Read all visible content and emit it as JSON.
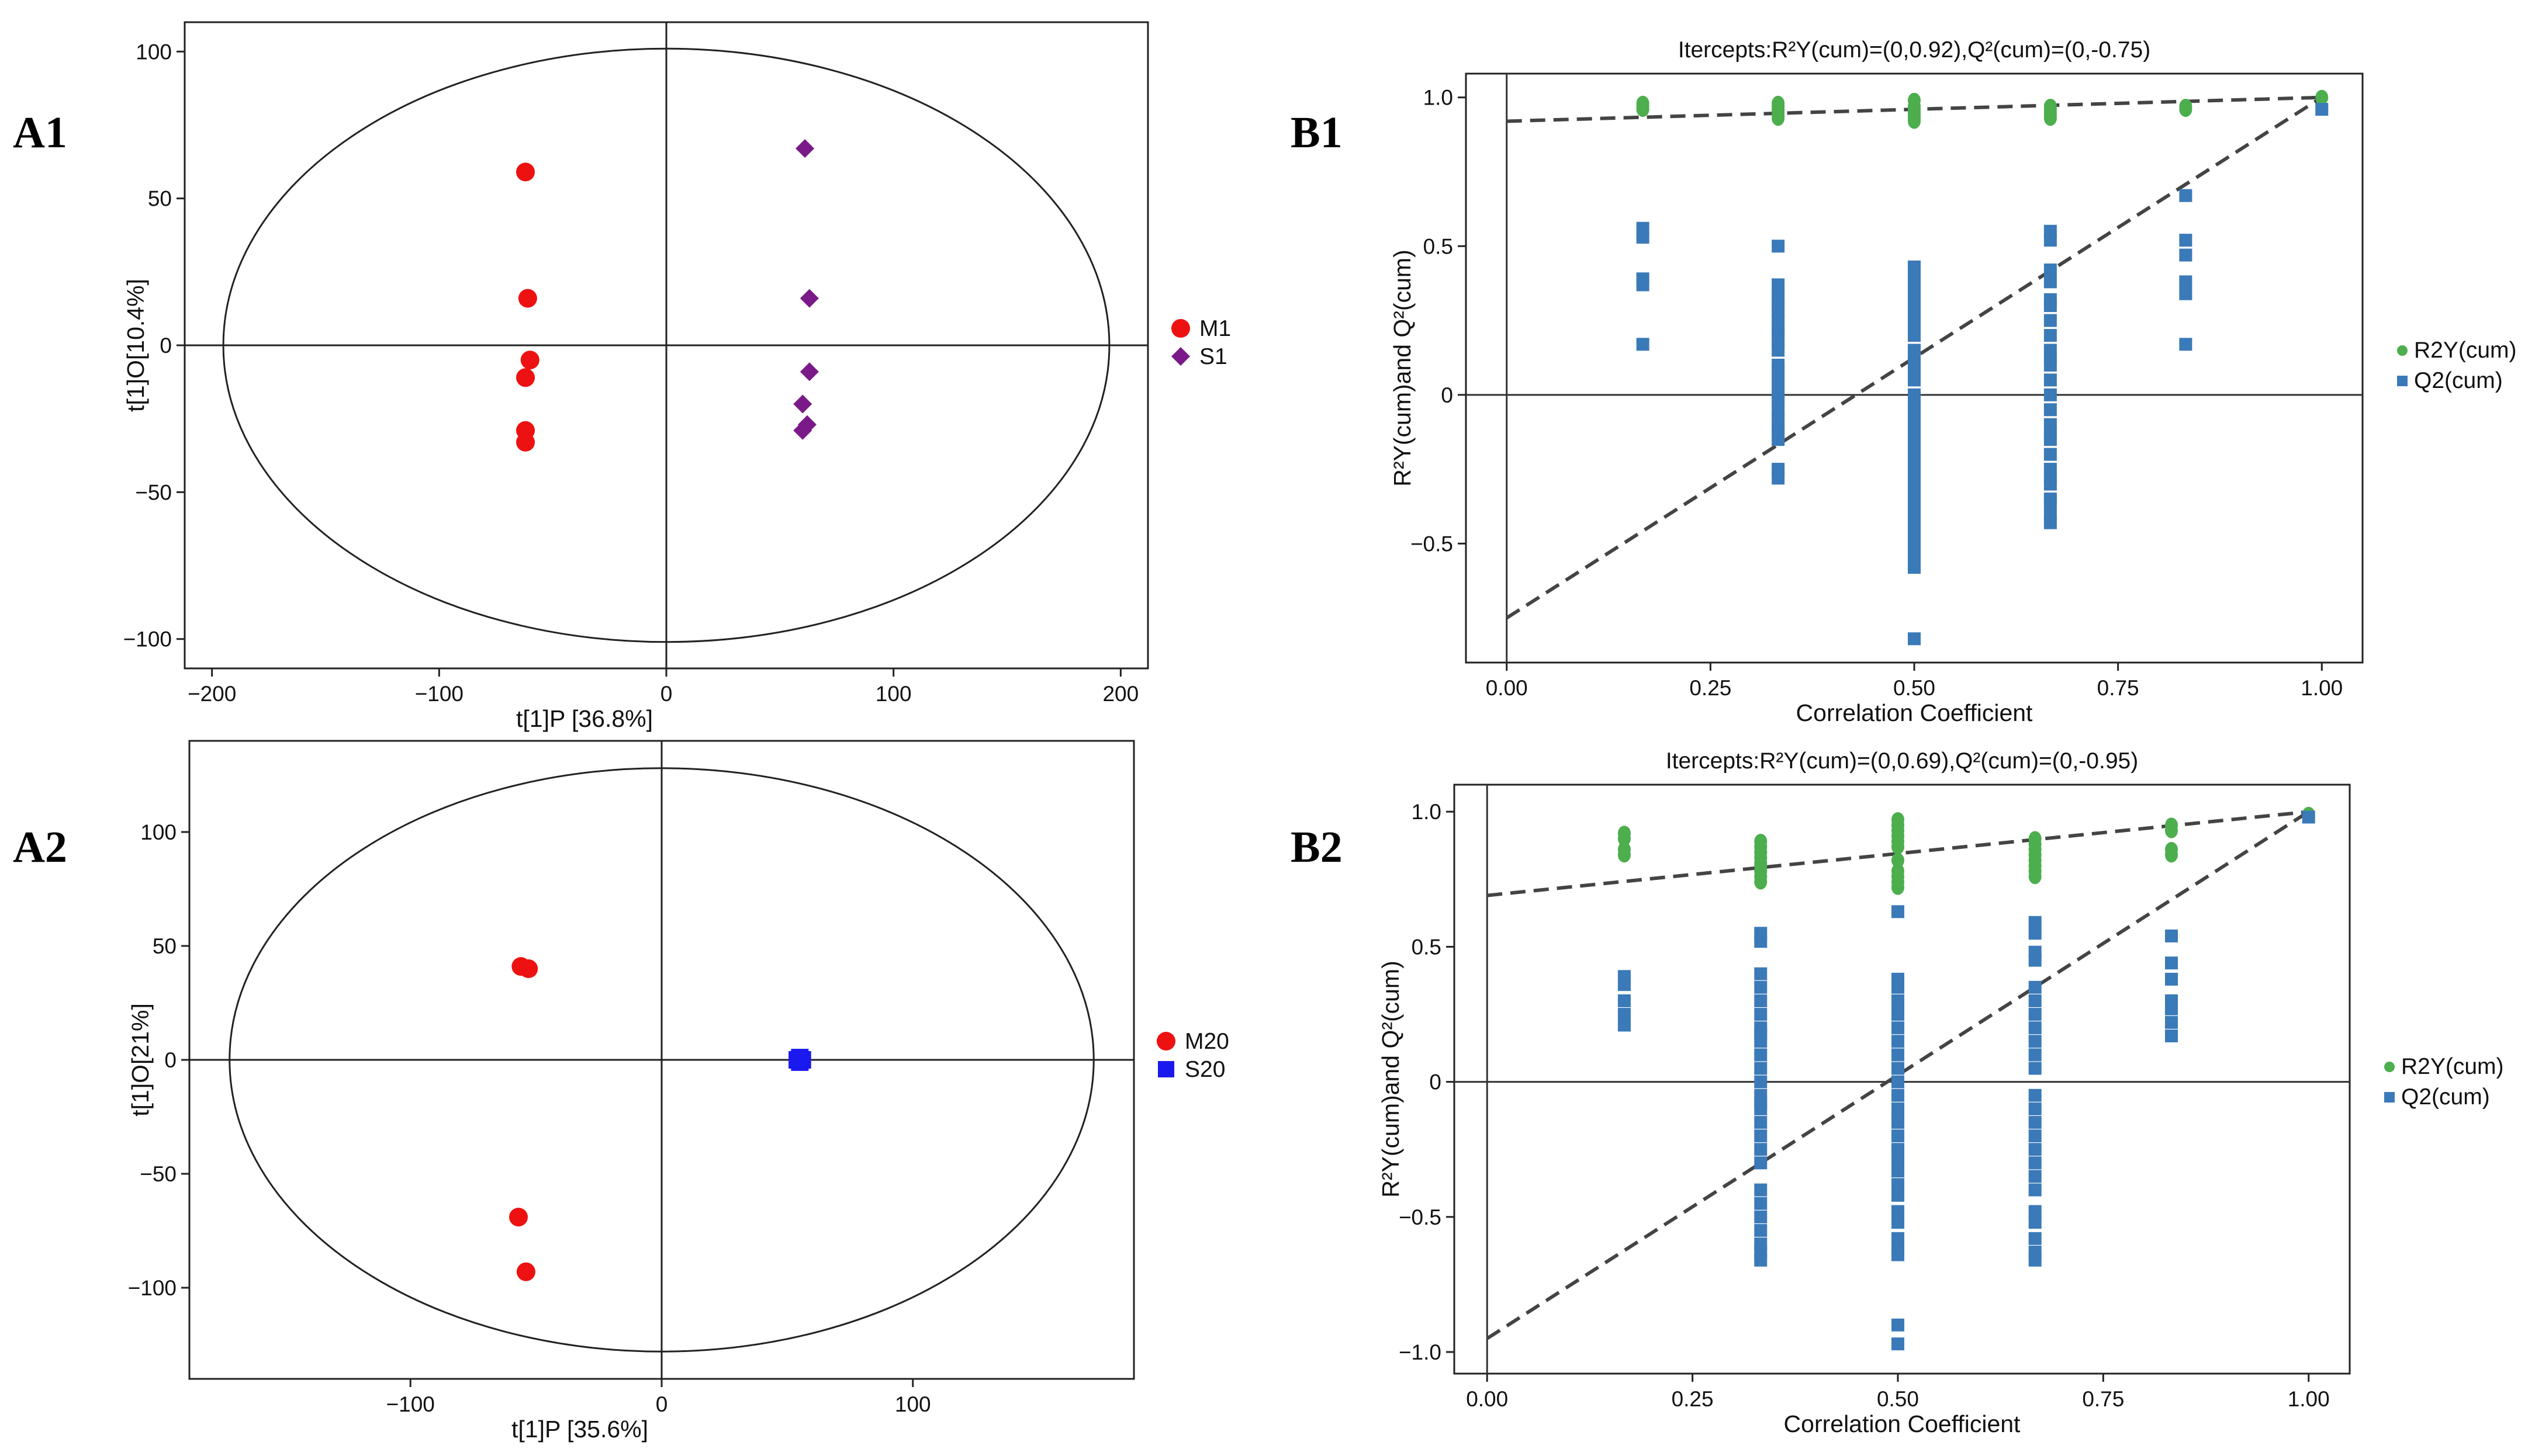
{
  "panel_labels": {
    "a1": "A1",
    "a2": "A2",
    "b1": "B1",
    "b2": "B2"
  },
  "colors": {
    "red": "#ee1111",
    "purple": "#7a1a88",
    "blue": "#1a1aee",
    "green": "#4cae4c",
    "steel": "#3a7ab8",
    "dash": "#444444"
  },
  "chart_data": [
    {
      "id": "A1",
      "type": "scatter",
      "title": "",
      "xlabel": "t[1]P [36.8%]",
      "ylabel": "t[1]O[10.4%]",
      "xlim": [
        -212,
        212
      ],
      "ylim": [
        -110,
        110
      ],
      "xticks": [
        -200,
        -100,
        0,
        100,
        200
      ],
      "yticks": [
        -100,
        -50,
        0,
        50,
        100
      ],
      "xtick_labels": [
        "−200",
        "−100",
        "0",
        "100",
        "200"
      ],
      "ytick_labels": [
        "−100",
        "−50",
        "0",
        "50",
        "100"
      ],
      "ellipse": {
        "rx": 195,
        "ry": 101
      },
      "series": [
        {
          "name": "M1",
          "marker": "circle",
          "color": "#ee1111",
          "points": [
            [
              -62,
              59
            ],
            [
              -61,
              16
            ],
            [
              -60,
              -5
            ],
            [
              -62,
              -11
            ],
            [
              -62,
              -29
            ],
            [
              -62,
              -33
            ]
          ]
        },
        {
          "name": "S1",
          "marker": "diamond",
          "color": "#7a1a88",
          "points": [
            [
              61,
              67
            ],
            [
              63,
              16
            ],
            [
              63,
              -9
            ],
            [
              60,
              -20
            ],
            [
              62,
              -27
            ],
            [
              60,
              -29
            ]
          ]
        }
      ]
    },
    {
      "id": "A2",
      "type": "scatter",
      "title": "",
      "xlabel": "t[1]P [35.6%]",
      "ylabel": "t[1]O[21%]",
      "xlim": [
        -188,
        188
      ],
      "ylim": [
        -140,
        140
      ],
      "xticks": [
        -100,
        0,
        100
      ],
      "yticks": [
        -100,
        -50,
        0,
        50,
        100
      ],
      "xtick_labels": [
        "−100",
        "0",
        "100"
      ],
      "ytick_labels": [
        "−100",
        "−50",
        "0",
        "50",
        "100"
      ],
      "ellipse": {
        "rx": 172,
        "ry": 128
      },
      "series": [
        {
          "name": "M20",
          "marker": "circle",
          "color": "#ee1111",
          "points": [
            [
              -56,
              41
            ],
            [
              -53,
              40
            ],
            [
              -57,
              -69
            ],
            [
              -54,
              -93
            ]
          ]
        },
        {
          "name": "S20",
          "marker": "square",
          "color": "#1a1aee",
          "points": [
            [
              54,
              0
            ],
            [
              55,
              1
            ],
            [
              55,
              -1
            ],
            [
              56,
              0
            ]
          ]
        }
      ]
    },
    {
      "id": "B1",
      "type": "scatter",
      "title": "Itercepts:R²Y(cum)=(0,0.92),Q²(cum)=(0,-0.75)",
      "xlabel": "Correlation Coefficient",
      "ylabel": "R²Y(cum)and Q²(cum)",
      "xlim": [
        -0.05,
        1.05
      ],
      "ylim": [
        -0.9,
        1.08
      ],
      "xticks": [
        0,
        0.25,
        0.5,
        0.75,
        1
      ],
      "yticks": [
        -0.5,
        0,
        0.5,
        1
      ],
      "xtick_labels": [
        "0.00",
        "0.25",
        "0.50",
        "0.75",
        "1.00"
      ],
      "ytick_labels": [
        "−0.5",
        "0",
        "0.5",
        "1.0"
      ],
      "intercepts": {
        "r2y": 0.92,
        "q2": -0.75
      },
      "series": [
        {
          "name": "R2Y(cum)",
          "marker": "circle",
          "color": "#4cae4c",
          "x": [
            0.167,
            0.167,
            0.167,
            0.333,
            0.333,
            0.333,
            0.333,
            0.333,
            0.333,
            0.5,
            0.5,
            0.5,
            0.5,
            0.5,
            0.5,
            0.5,
            0.667,
            0.667,
            0.667,
            0.667,
            0.667,
            0.833,
            0.833,
            1.0
          ],
          "y": [
            0.96,
            0.97,
            0.98,
            0.93,
            0.94,
            0.95,
            0.96,
            0.97,
            0.98,
            0.92,
            0.93,
            0.94,
            0.95,
            0.96,
            0.97,
            0.99,
            0.93,
            0.94,
            0.95,
            0.96,
            0.97,
            0.96,
            0.97,
            1.0
          ]
        },
        {
          "name": "Q2(cum)",
          "marker": "square",
          "color": "#3a7ab8",
          "x": [
            0.167,
            0.167,
            0.167,
            0.167,
            0.167,
            0.333,
            0.333,
            0.333,
            0.333,
            0.333,
            0.333,
            0.333,
            0.333,
            0.333,
            0.333,
            0.333,
            0.333,
            0.333,
            0.333,
            0.333,
            0.333,
            0.333,
            0.333,
            0.333,
            0.333,
            0.333,
            0.333,
            0.333,
            0.5,
            0.5,
            0.5,
            0.5,
            0.5,
            0.5,
            0.5,
            0.5,
            0.5,
            0.5,
            0.5,
            0.5,
            0.5,
            0.5,
            0.5,
            0.5,
            0.5,
            0.5,
            0.5,
            0.5,
            0.5,
            0.5,
            0.5,
            0.5,
            0.5,
            0.5,
            0.5,
            0.5,
            0.5,
            0.5,
            0.5,
            0.5,
            0.5,
            0.5,
            0.5,
            0.5,
            0.5,
            0.5,
            0.5,
            0.667,
            0.667,
            0.667,
            0.667,
            0.667,
            0.667,
            0.667,
            0.667,
            0.667,
            0.667,
            0.667,
            0.667,
            0.667,
            0.667,
            0.667,
            0.667,
            0.667,
            0.667,
            0.667,
            0.667,
            0.667,
            0.667,
            0.667,
            0.667,
            0.667,
            0.833,
            0.833,
            0.833,
            0.833,
            0.833,
            0.833,
            1.0
          ],
          "y": [
            0.56,
            0.53,
            0.39,
            0.37,
            0.17,
            0.5,
            0.37,
            0.33,
            0.3,
            0.25,
            0.2,
            0.15,
            0.1,
            0.05,
            0.0,
            -0.02,
            -0.05,
            -0.08,
            -0.12,
            -0.15,
            0.28,
            0.22,
            0.18,
            0.08,
            0.03,
            -0.1,
            -0.25,
            -0.28,
            0.43,
            0.4,
            0.36,
            0.3,
            0.25,
            0.2,
            0.15,
            0.1,
            0.05,
            0.0,
            -0.05,
            -0.1,
            -0.15,
            -0.2,
            -0.25,
            -0.3,
            -0.35,
            0.35,
            0.12,
            -0.02,
            -0.28,
            -0.32,
            -0.42,
            -0.45,
            -0.48,
            -0.5,
            -0.52,
            -0.58,
            -0.82,
            0.27,
            0.22,
            0.07,
            -0.08,
            -0.12,
            -0.18,
            -0.22,
            -0.38,
            -0.55,
            0.33,
            0.55,
            0.52,
            0.42,
            0.38,
            0.3,
            0.25,
            0.2,
            0.15,
            0.1,
            0.05,
            0.0,
            -0.05,
            -0.1,
            -0.15,
            -0.2,
            -0.25,
            -0.3,
            -0.35,
            -0.4,
            -0.43,
            0.32,
            0.12,
            -0.13,
            -0.28,
            -0.36,
            0.67,
            0.52,
            0.47,
            0.38,
            0.34,
            0.17,
            0.96
          ]
        }
      ]
    },
    {
      "id": "B2",
      "type": "scatter",
      "title": "Itercepts:R²Y(cum)=(0,0.69),Q²(cum)=(0,-0.95)",
      "xlabel": "Correlation Coefficient",
      "ylabel": "R²Y(cum)and Q²(cum)",
      "xlim": [
        -0.04,
        1.05
      ],
      "ylim": [
        -1.08,
        1.1
      ],
      "xticks": [
        0,
        0.25,
        0.5,
        0.75,
        1
      ],
      "yticks": [
        -1,
        -0.5,
        0,
        0.5,
        1
      ],
      "xtick_labels": [
        "0.00",
        "0.25",
        "0.50",
        "0.75",
        "1.00"
      ],
      "ytick_labels": [
        "−1.0",
        "−0.5",
        "0",
        "0.5",
        "1.0"
      ],
      "intercepts": {
        "r2y": 0.69,
        "q2": -0.95
      },
      "series": [
        {
          "name": "R2Y(cum)",
          "marker": "circle",
          "color": "#4cae4c",
          "x": [
            0.167,
            0.167,
            0.167,
            0.167,
            0.333,
            0.333,
            0.333,
            0.333,
            0.333,
            0.333,
            0.333,
            0.333,
            0.333,
            0.5,
            0.5,
            0.5,
            0.5,
            0.5,
            0.5,
            0.5,
            0.5,
            0.5,
            0.5,
            0.5,
            0.667,
            0.667,
            0.667,
            0.667,
            0.667,
            0.667,
            0.667,
            0.667,
            0.833,
            0.833,
            0.833,
            0.833,
            1.0
          ],
          "y": [
            0.92,
            0.9,
            0.86,
            0.84,
            0.89,
            0.87,
            0.85,
            0.83,
            0.81,
            0.8,
            0.78,
            0.76,
            0.74,
            0.97,
            0.95,
            0.93,
            0.91,
            0.89,
            0.87,
            0.82,
            0.78,
            0.76,
            0.74,
            0.72,
            0.9,
            0.88,
            0.86,
            0.84,
            0.82,
            0.8,
            0.78,
            0.76,
            0.95,
            0.93,
            0.86,
            0.84,
            0.99
          ]
        },
        {
          "name": "Q2(cum)",
          "marker": "square",
          "color": "#3a7ab8",
          "x": [
            0.167,
            0.167,
            0.167,
            0.167,
            0.167,
            0.333,
            0.333,
            0.333,
            0.333,
            0.333,
            0.333,
            0.333,
            0.333,
            0.333,
            0.333,
            0.333,
            0.333,
            0.333,
            0.333,
            0.333,
            0.333,
            0.333,
            0.333,
            0.333,
            0.333,
            0.333,
            0.333,
            0.333,
            0.333,
            0.333,
            0.333,
            0.5,
            0.5,
            0.5,
            0.5,
            0.5,
            0.5,
            0.5,
            0.5,
            0.5,
            0.5,
            0.5,
            0.5,
            0.5,
            0.5,
            0.5,
            0.5,
            0.5,
            0.5,
            0.5,
            0.5,
            0.5,
            0.5,
            0.5,
            0.5,
            0.5,
            0.5,
            0.5,
            0.5,
            0.5,
            0.667,
            0.667,
            0.667,
            0.667,
            0.667,
            0.667,
            0.667,
            0.667,
            0.667,
            0.667,
            0.667,
            0.667,
            0.667,
            0.667,
            0.667,
            0.667,
            0.667,
            0.667,
            0.667,
            0.667,
            0.667,
            0.667,
            0.667,
            0.667,
            0.833,
            0.833,
            0.833,
            0.833,
            0.833,
            0.833,
            0.833,
            1.0
          ],
          "y": [
            0.39,
            0.36,
            0.3,
            0.25,
            0.21,
            0.55,
            0.52,
            0.4,
            0.35,
            0.3,
            0.25,
            0.2,
            0.15,
            0.1,
            0.05,
            0.0,
            -0.05,
            -0.1,
            -0.15,
            -0.2,
            -0.25,
            -0.3,
            -0.4,
            -0.45,
            -0.5,
            -0.55,
            -0.6,
            -0.63,
            -0.66,
            0.18,
            -0.08,
            0.63,
            0.38,
            0.35,
            0.3,
            0.25,
            0.2,
            0.15,
            0.1,
            0.05,
            0.0,
            -0.05,
            -0.1,
            -0.15,
            -0.2,
            -0.25,
            -0.3,
            -0.33,
            -0.38,
            -0.42,
            -0.48,
            -0.52,
            -0.58,
            -0.62,
            -0.64,
            -0.9,
            -0.97,
            0.28,
            -0.12,
            -0.26,
            0.59,
            0.55,
            0.48,
            0.45,
            0.35,
            0.3,
            0.25,
            0.2,
            0.15,
            0.1,
            0.05,
            -0.05,
            -0.1,
            -0.15,
            -0.2,
            -0.25,
            -0.3,
            -0.35,
            -0.4,
            -0.48,
            -0.52,
            -0.58,
            -0.63,
            -0.66,
            0.54,
            0.44,
            0.38,
            0.3,
            0.27,
            0.22,
            0.17,
            0.98
          ]
        }
      ]
    }
  ]
}
